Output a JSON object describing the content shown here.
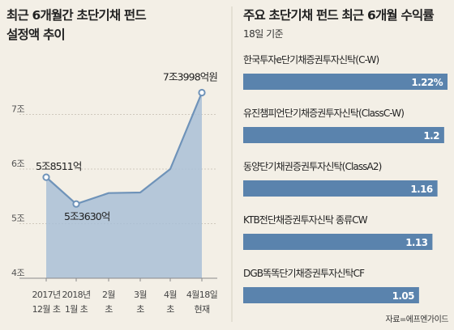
{
  "source": "자료=에프엔가이드",
  "colors": {
    "background": "#f3efe6",
    "bar": "#5a83ad",
    "area": "#a9c0d6",
    "line": "#6f93b9"
  },
  "chart_data": [
    {
      "type": "area",
      "title": "최근 6개월간 초단기채 펀드",
      "subtitle": "설정액 추이",
      "y_ticks": [
        "4조",
        "5조",
        "6조",
        "7조"
      ],
      "ylim": [
        4,
        7.5
      ],
      "x_tick_labels": [
        [
          "2017년",
          "12월 초"
        ],
        [
          "2018년",
          "1월 초"
        ],
        [
          "2월",
          "초"
        ],
        [
          "3월",
          "초"
        ],
        [
          "4월",
          "초"
        ],
        [
          "4월18일",
          "현재"
        ]
      ],
      "x": [
        0,
        1,
        2,
        3,
        4,
        5
      ],
      "values": [
        5.85,
        5.36,
        5.56,
        5.57,
        6.0,
        7.4
      ],
      "marked_points": [
        {
          "index": 0,
          "label": "5조8511억"
        },
        {
          "index": 1,
          "label": "5조3630억"
        },
        {
          "index": 5,
          "label": "7조3998억원"
        }
      ],
      "grid": true
    },
    {
      "type": "bar",
      "orientation": "horizontal",
      "title": "주요 초단기채 펀드 최근 6개월 수익률",
      "subtitle": "18일 기준",
      "categories": [
        "한국투자e단기채증권투자신탁(C-W)",
        "유진챔피언단기채증권투자신탁(ClassC-W)",
        "동양단기채권증권투자신탁(ClassA2)",
        "KTB전단채증권투자신탁 종류CW",
        "DGB똑똑단기채증권투자신탁CF"
      ],
      "values": [
        1.22,
        1.2,
        1.16,
        1.13,
        1.05
      ],
      "value_labels": [
        "1.22%",
        "1.2",
        "1.16",
        "1.13",
        "1.05"
      ]
    }
  ]
}
